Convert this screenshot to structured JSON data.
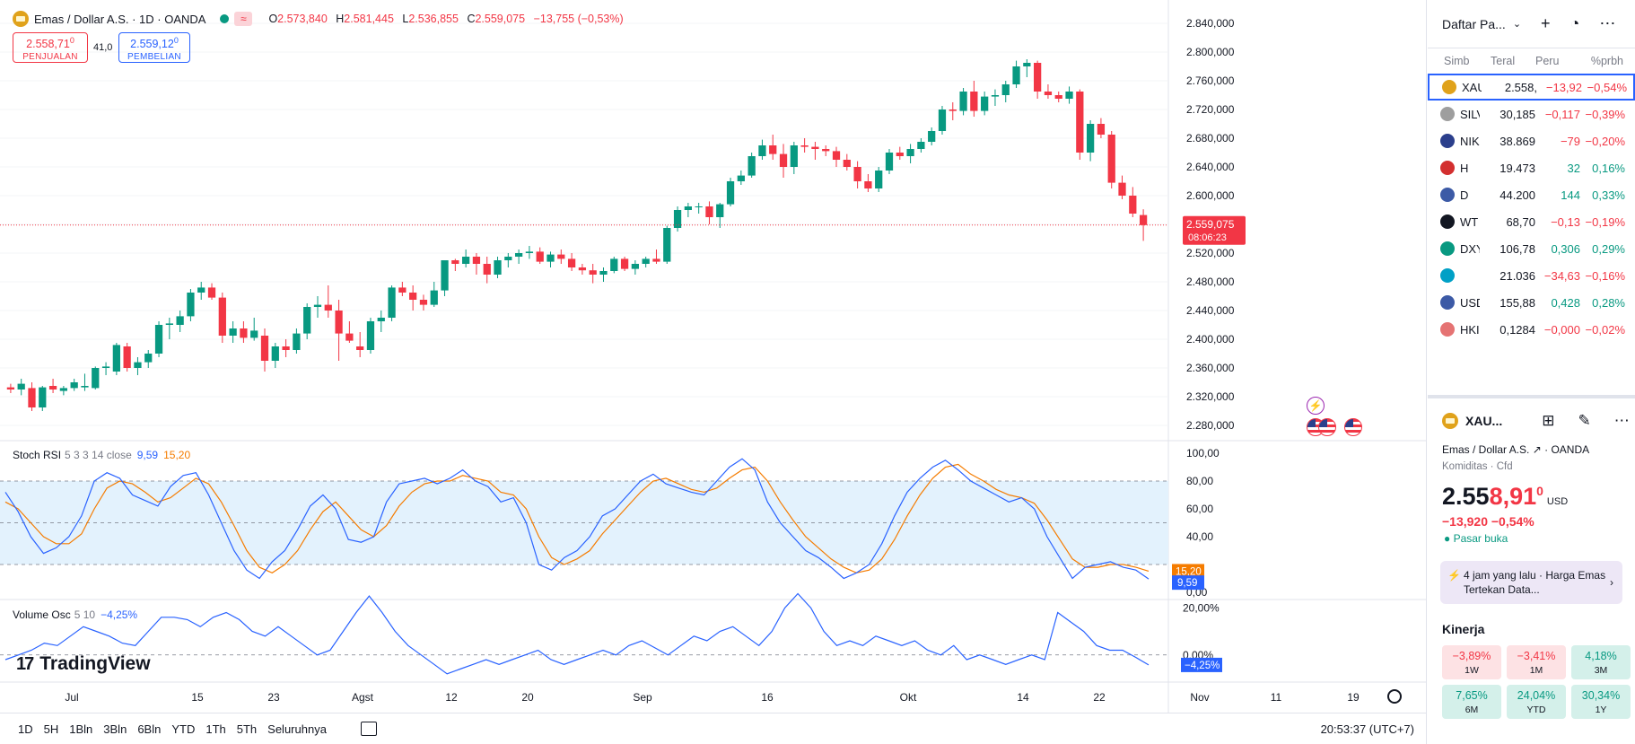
{
  "header": {
    "symbol_title": "Emas / Dollar A.S. · 1D · OANDA",
    "o_label": "O",
    "o_value": "2.573,840",
    "h_label": "H",
    "h_value": "2.581,445",
    "l_label": "L",
    "l_value": "2.536,855",
    "c_label": "C",
    "c_value": "2.559,075",
    "change": "−13,755 (−0,53%)",
    "wave_icon": "≈"
  },
  "trade": {
    "sell_price": "2.558,71",
    "sell_sup": "0",
    "sell_label": "PENJUALAN",
    "spread": "41,0",
    "buy_price": "2.559,12",
    "buy_sup": "0",
    "buy_label": "PEMBELIAN"
  },
  "price_axis": {
    "ticks": [
      "2.840,000",
      "2.800,000",
      "2.760,000",
      "2.720,000",
      "2.680,000",
      "2.640,000",
      "2.600,000",
      "2.560,000",
      "2.520,000",
      "2.480,000",
      "2.440,000",
      "2.400,000",
      "2.360,000",
      "2.320,000",
      "2.280,000"
    ],
    "current_price": "2.559,075",
    "countdown": "08:06:23"
  },
  "stoch_rsi": {
    "name": "Stoch RSI",
    "params": "5 3 3 14 close",
    "k_value": "9,59",
    "d_value": "15,20",
    "ticks": [
      "100,00",
      "80,00",
      "60,00",
      "40,00",
      "0,00"
    ]
  },
  "volume_osc": {
    "name": "Volume Osc",
    "params": "5 10",
    "value": "−4,25%",
    "ticks": [
      "20,00%",
      "0,00%"
    ],
    "badge": "−4,25%"
  },
  "time_axis": {
    "labels": [
      "Jul",
      "15",
      "23",
      "Agst",
      "12",
      "20",
      "Sep",
      "16",
      "Okt",
      "14",
      "22",
      "Nov",
      "11",
      "19"
    ]
  },
  "logo": {
    "mark": "17",
    "text": "TradingView"
  },
  "events_icon": "⚡",
  "bottom": {
    "timeframes": [
      "1D",
      "5H",
      "1Bln",
      "3Bln",
      "6Bln",
      "YTD",
      "1Th",
      "5Th",
      "Seluruhnya"
    ],
    "clock": "20:53:37 (UTC+7)"
  },
  "watchlist": {
    "title": "Daftar Pa...",
    "columns": [
      "Simb",
      "Teral",
      "Peru",
      "%prbh"
    ],
    "rows": [
      {
        "sym": "XAU",
        "last": "2.558,",
        "chg": "−13,92",
        "pct": "−0,54%",
        "dir": "neg",
        "icon_color": "#e0a21b",
        "selected": true
      },
      {
        "sym": "SILV",
        "last": "30,185",
        "chg": "−0,117",
        "pct": "−0,39%",
        "dir": "neg",
        "icon_color": "#9e9e9e"
      },
      {
        "sym": "NIK",
        "last": "38.869",
        "chg": "−79",
        "pct": "−0,20%",
        "dir": "neg",
        "icon_color": "#2b3f8c"
      },
      {
        "sym": "H",
        "last": "19.473",
        "chg": "32",
        "pct": "0,16%",
        "dir": "pos",
        "icon_color": "#d32f2f"
      },
      {
        "sym": "D",
        "last": "44.200",
        "chg": "144",
        "pct": "0,33%",
        "dir": "pos",
        "icon_color": "#3c5aa6"
      },
      {
        "sym": "WT",
        "last": "68,70",
        "chg": "−0,13",
        "pct": "−0,19%",
        "dir": "neg",
        "icon_color": "#131722"
      },
      {
        "sym": "DXY",
        "last": "106,78",
        "chg": "0,306",
        "pct": "0,29%",
        "dir": "pos",
        "icon_color": "#089981"
      },
      {
        "sym": "",
        "last": "21.036",
        "chg": "−34,63",
        "pct": "−0,16%",
        "dir": "neg",
        "icon_color": "#00a0c6"
      },
      {
        "sym": "USD",
        "last": "155,88",
        "chg": "0,428",
        "pct": "0,28%",
        "dir": "pos",
        "icon_color": "#3c5aa6"
      },
      {
        "sym": "HKI",
        "last": "0,1284",
        "chg": "−0,000",
        "pct": "−0,02%",
        "dir": "neg",
        "icon_color": "#e57373"
      }
    ]
  },
  "details": {
    "symbol": "XAU...",
    "name": "Emas / Dollar A.S.",
    "exchange": "· OANDA",
    "category": "Komiditas · Cfd",
    "price_main": "2.55",
    "price_red": "8,91",
    "price_sup": "0",
    "currency": "USD",
    "change": "−13,920  −0,54%",
    "status": "● Pasar buka",
    "news": "4 jam yang lalu · Harga Emas Tertekan Data...",
    "perf_title": "Kinerja",
    "performance": [
      {
        "value": "−3,89%",
        "label": "1W",
        "dir": "neg"
      },
      {
        "value": "−3,41%",
        "label": "1M",
        "dir": "neg"
      },
      {
        "value": "4,18%",
        "label": "3M",
        "dir": "pos"
      },
      {
        "value": "7,65%",
        "label": "6M",
        "dir": "pos"
      },
      {
        "value": "24,04%",
        "label": "YTD",
        "dir": "pos"
      },
      {
        "value": "30,34%",
        "label": "1Y",
        "dir": "pos"
      }
    ]
  },
  "colors": {
    "up": "#089981",
    "down": "#f23645",
    "k_line": "#2962ff",
    "d_line": "#f57c00",
    "rsi_band": "#e3f2fd"
  },
  "chart_data": {
    "type": "candlestick",
    "ylim": [
      2260,
      2850
    ],
    "candles": [
      [
        2333,
        2338,
        2325,
        2330
      ],
      [
        2330,
        2345,
        2322,
        2338
      ],
      [
        2332,
        2340,
        2300,
        2305
      ],
      [
        2305,
        2335,
        2300,
        2333
      ],
      [
        2335,
        2345,
        2325,
        2330
      ],
      [
        2328,
        2335,
        2322,
        2332
      ],
      [
        2332,
        2345,
        2328,
        2340
      ],
      [
        2333,
        2352,
        2328,
        2335
      ],
      [
        2332,
        2362,
        2330,
        2360
      ],
      [
        2360,
        2368,
        2350,
        2362
      ],
      [
        2355,
        2395,
        2350,
        2392
      ],
      [
        2390,
        2395,
        2355,
        2360
      ],
      [
        2360,
        2375,
        2350,
        2368
      ],
      [
        2368,
        2385,
        2360,
        2380
      ],
      [
        2380,
        2425,
        2375,
        2420
      ],
      [
        2420,
        2430,
        2400,
        2422
      ],
      [
        2420,
        2440,
        2410,
        2432
      ],
      [
        2432,
        2470,
        2425,
        2465
      ],
      [
        2465,
        2480,
        2455,
        2472
      ],
      [
        2472,
        2478,
        2455,
        2458
      ],
      [
        2458,
        2465,
        2395,
        2405
      ],
      [
        2405,
        2425,
        2395,
        2415
      ],
      [
        2415,
        2425,
        2395,
        2402
      ],
      [
        2402,
        2430,
        2398,
        2412
      ],
      [
        2405,
        2415,
        2355,
        2370
      ],
      [
        2370,
        2395,
        2360,
        2390
      ],
      [
        2390,
        2400,
        2375,
        2385
      ],
      [
        2385,
        2415,
        2380,
        2408
      ],
      [
        2408,
        2450,
        2400,
        2445
      ],
      [
        2445,
        2460,
        2430,
        2448
      ],
      [
        2448,
        2475,
        2430,
        2440
      ],
      [
        2440,
        2455,
        2370,
        2408
      ],
      [
        2408,
        2425,
        2395,
        2398
      ],
      [
        2390,
        2410,
        2375,
        2385
      ],
      [
        2385,
        2430,
        2380,
        2425
      ],
      [
        2425,
        2440,
        2410,
        2430
      ],
      [
        2430,
        2475,
        2425,
        2472
      ],
      [
        2472,
        2480,
        2460,
        2465
      ],
      [
        2465,
        2475,
        2440,
        2455
      ],
      [
        2455,
        2462,
        2440,
        2448
      ],
      [
        2448,
        2480,
        2445,
        2468
      ],
      [
        2468,
        2510,
        2460,
        2510
      ],
      [
        2510,
        2512,
        2495,
        2505
      ],
      [
        2505,
        2525,
        2500,
        2515
      ],
      [
        2515,
        2520,
        2490,
        2505
      ],
      [
        2505,
        2515,
        2478,
        2490
      ],
      [
        2490,
        2515,
        2485,
        2510
      ],
      [
        2510,
        2520,
        2500,
        2515
      ],
      [
        2515,
        2525,
        2505,
        2520
      ],
      [
        2520,
        2530,
        2512,
        2522
      ],
      [
        2522,
        2528,
        2505,
        2508
      ],
      [
        2508,
        2522,
        2500,
        2518
      ],
      [
        2518,
        2525,
        2505,
        2512
      ],
      [
        2512,
        2520,
        2495,
        2500
      ],
      [
        2500,
        2505,
        2490,
        2496
      ],
      [
        2496,
        2505,
        2478,
        2490
      ],
      [
        2490,
        2500,
        2480,
        2495
      ],
      [
        2495,
        2515,
        2492,
        2512
      ],
      [
        2512,
        2515,
        2495,
        2498
      ],
      [
        2498,
        2510,
        2490,
        2505
      ],
      [
        2505,
        2515,
        2500,
        2512
      ],
      [
        2512,
        2525,
        2505,
        2508
      ],
      [
        2508,
        2558,
        2505,
        2555
      ],
      [
        2555,
        2585,
        2550,
        2580
      ],
      [
        2580,
        2590,
        2570,
        2585
      ],
      [
        2585,
        2590,
        2575,
        2585
      ],
      [
        2585,
        2592,
        2560,
        2570
      ],
      [
        2570,
        2590,
        2555,
        2588
      ],
      [
        2588,
        2625,
        2585,
        2620
      ],
      [
        2620,
        2635,
        2615,
        2628
      ],
      [
        2628,
        2660,
        2625,
        2655
      ],
      [
        2655,
        2678,
        2650,
        2670
      ],
      [
        2670,
        2685,
        2650,
        2658
      ],
      [
        2658,
        2672,
        2625,
        2640
      ],
      [
        2640,
        2675,
        2630,
        2670
      ],
      [
        2670,
        2680,
        2660,
        2668
      ],
      [
        2668,
        2675,
        2650,
        2665
      ],
      [
        2665,
        2670,
        2655,
        2662
      ],
      [
        2662,
        2668,
        2640,
        2650
      ],
      [
        2650,
        2658,
        2635,
        2640
      ],
      [
        2640,
        2648,
        2610,
        2620
      ],
      [
        2620,
        2630,
        2605,
        2610
      ],
      [
        2610,
        2640,
        2605,
        2635
      ],
      [
        2635,
        2665,
        2630,
        2660
      ],
      [
        2660,
        2668,
        2650,
        2655
      ],
      [
        2655,
        2672,
        2645,
        2665
      ],
      [
        2665,
        2680,
        2660,
        2675
      ],
      [
        2675,
        2695,
        2670,
        2690
      ],
      [
        2690,
        2725,
        2685,
        2720
      ],
      [
        2720,
        2730,
        2705,
        2718
      ],
      [
        2718,
        2750,
        2712,
        2745
      ],
      [
        2745,
        2760,
        2710,
        2718
      ],
      [
        2718,
        2745,
        2712,
        2738
      ],
      [
        2738,
        2748,
        2725,
        2740
      ],
      [
        2740,
        2760,
        2730,
        2755
      ],
      [
        2755,
        2788,
        2750,
        2780
      ],
      [
        2780,
        2790,
        2765,
        2785
      ],
      [
        2785,
        2788,
        2735,
        2745
      ],
      [
        2745,
        2755,
        2735,
        2740
      ],
      [
        2740,
        2745,
        2730,
        2735
      ],
      [
        2735,
        2752,
        2728,
        2745
      ],
      [
        2745,
        2748,
        2650,
        2660
      ],
      [
        2660,
        2705,
        2648,
        2700
      ],
      [
        2700,
        2708,
        2680,
        2685
      ],
      [
        2685,
        2690,
        2610,
        2618
      ],
      [
        2618,
        2628,
        2595,
        2600
      ],
      [
        2600,
        2612,
        2570,
        2575
      ],
      [
        2573,
        2581,
        2537,
        2559
      ]
    ],
    "stoch_k": [
      72,
      58,
      40,
      28,
      32,
      40,
      55,
      80,
      86,
      82,
      70,
      66,
      62,
      76,
      84,
      86,
      70,
      50,
      30,
      16,
      10,
      22,
      30,
      45,
      62,
      70,
      60,
      38,
      36,
      40,
      65,
      78,
      80,
      82,
      78,
      82,
      88,
      80,
      76,
      65,
      68,
      50,
      20,
      16,
      25,
      30,
      40,
      55,
      60,
      70,
      80,
      85,
      78,
      75,
      72,
      70,
      80,
      90,
      96,
      88,
      65,
      50,
      40,
      30,
      25,
      18,
      10,
      14,
      20,
      35,
      55,
      72,
      82,
      90,
      95,
      88,
      80,
      75,
      70,
      65,
      68,
      60,
      40,
      25,
      10,
      18,
      20,
      22,
      18,
      16,
      9.59
    ],
    "stoch_d": [
      65,
      60,
      50,
      40,
      35,
      35,
      42,
      60,
      75,
      80,
      78,
      72,
      65,
      68,
      75,
      82,
      78,
      65,
      48,
      30,
      18,
      14,
      20,
      30,
      45,
      58,
      65,
      55,
      45,
      40,
      48,
      62,
      72,
      78,
      80,
      80,
      84,
      82,
      80,
      72,
      70,
      60,
      40,
      25,
      20,
      24,
      30,
      42,
      52,
      62,
      72,
      80,
      82,
      78,
      74,
      72,
      75,
      82,
      88,
      90,
      80,
      65,
      52,
      40,
      32,
      24,
      18,
      14,
      16,
      24,
      38,
      55,
      70,
      82,
      90,
      92,
      85,
      80,
      74,
      70,
      68,
      64,
      52,
      38,
      24,
      18,
      18,
      20,
      20,
      18,
      15.2
    ],
    "volume_osc": [
      -2,
      0,
      2,
      5,
      4,
      8,
      12,
      10,
      8,
      5,
      4,
      10,
      16,
      16,
      15,
      12,
      16,
      18,
      15,
      10,
      8,
      12,
      8,
      4,
      0,
      2,
      10,
      18,
      25,
      18,
      10,
      4,
      0,
      -4,
      -8,
      -6,
      -4,
      -2,
      -4,
      -2,
      0,
      2,
      -2,
      -4,
      -2,
      0,
      2,
      0,
      4,
      6,
      3,
      0,
      4,
      8,
      6,
      10,
      12,
      8,
      4,
      10,
      20,
      26,
      20,
      10,
      4,
      6,
      4,
      8,
      6,
      4,
      6,
      2,
      0,
      4,
      -2,
      0,
      -2,
      -4,
      -2,
      0,
      -2,
      18,
      14,
      10,
      4,
      2,
      2,
      -1,
      -4.25
    ]
  }
}
